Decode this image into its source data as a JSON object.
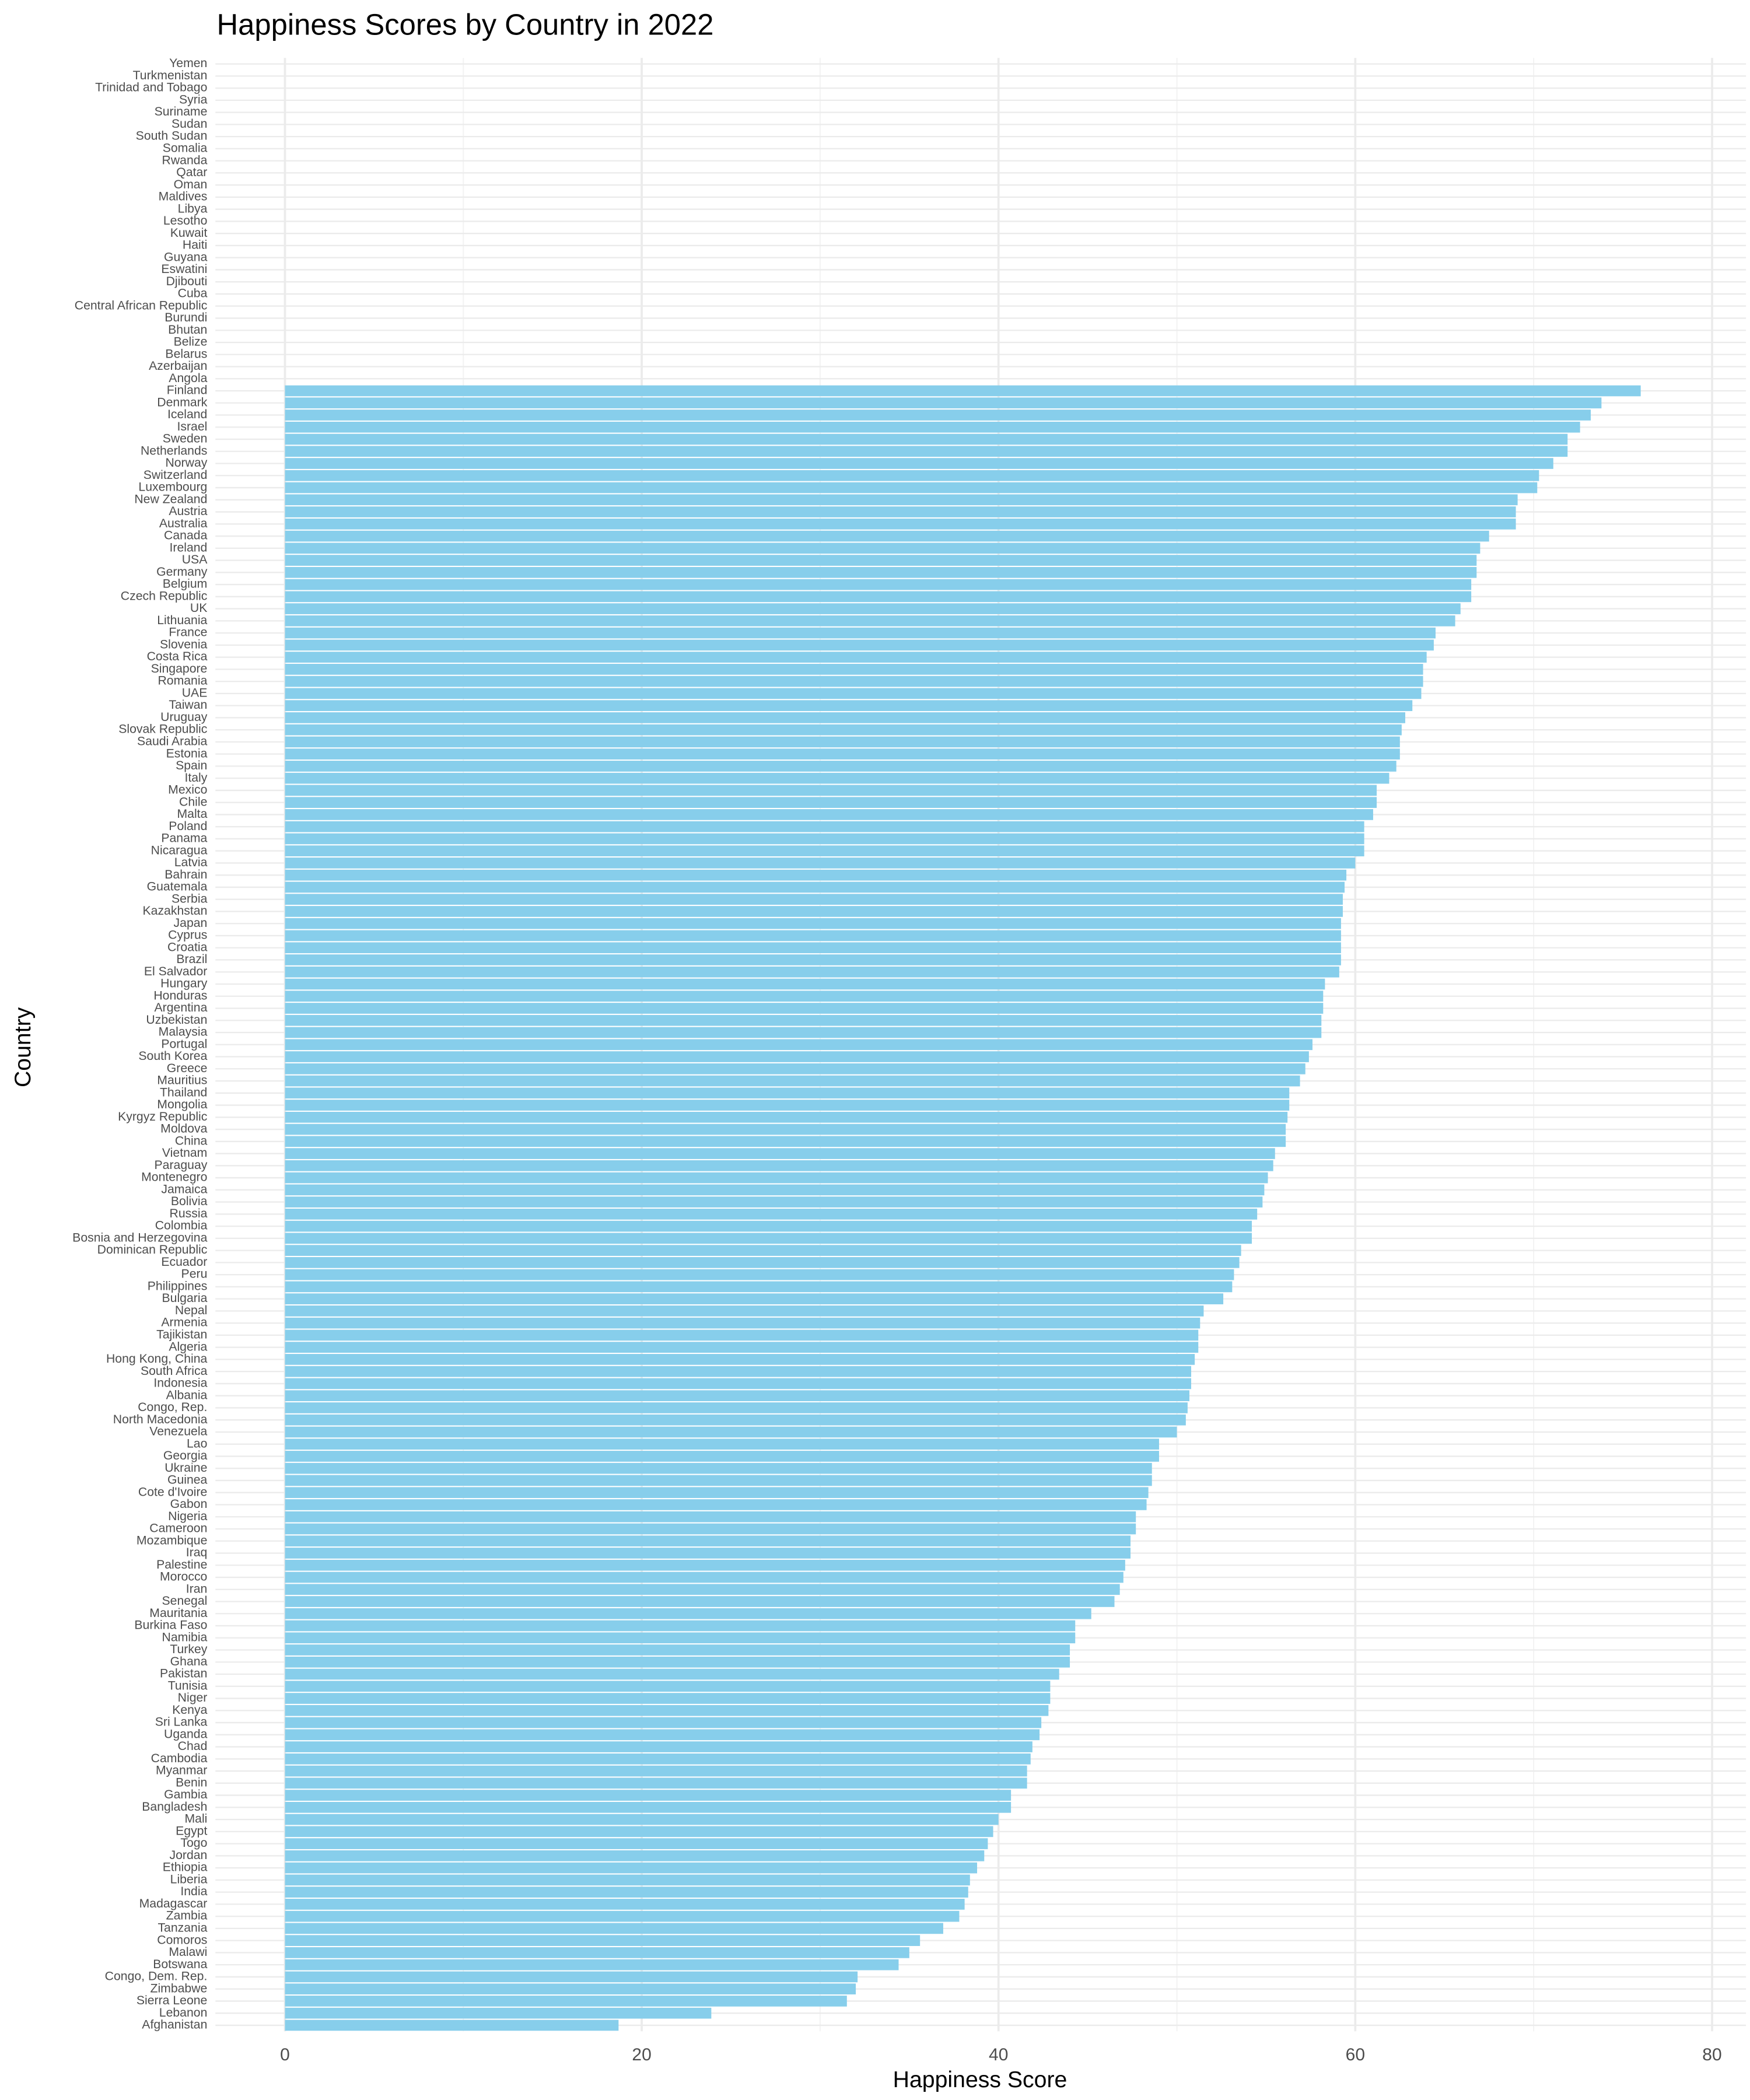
{
  "chart_data": {
    "type": "barh",
    "title": "Happiness Scores by Country in 2022",
    "x_label": "Happiness Score",
    "y_label": "Country",
    "color": "#87ceeb",
    "grid": true,
    "xlim": [
      -3.9,
      81.9
    ],
    "xticks": [
      0,
      20,
      40,
      60,
      80
    ],
    "x_minor_ticks": [
      10,
      30,
      50,
      70
    ],
    "categories": [
      "Yemen",
      "Turkmenistan",
      "Trinidad and Tobago",
      "Syria",
      "Suriname",
      "Sudan",
      "South Sudan",
      "Somalia",
      "Rwanda",
      "Qatar",
      "Oman",
      "Maldives",
      "Libya",
      "Lesotho",
      "Kuwait",
      "Haiti",
      "Guyana",
      "Eswatini",
      "Djibouti",
      "Cuba",
      "Central African Republic",
      "Burundi",
      "Bhutan",
      "Belize",
      "Belarus",
      "Azerbaijan",
      "Angola",
      "Finland",
      "Denmark",
      "Iceland",
      "Israel",
      "Sweden",
      "Netherlands",
      "Norway",
      "Switzerland",
      "Luxembourg",
      "New Zealand",
      "Austria",
      "Australia",
      "Canada",
      "Ireland",
      "USA",
      "Germany",
      "Belgium",
      "Czech Republic",
      "UK",
      "Lithuania",
      "France",
      "Slovenia",
      "Costa Rica",
      "Singapore",
      "Romania",
      "UAE",
      "Taiwan",
      "Uruguay",
      "Slovak Republic",
      "Saudi Arabia",
      "Estonia",
      "Spain",
      "Italy",
      "Mexico",
      "Chile",
      "Malta",
      "Poland",
      "Panama",
      "Nicaragua",
      "Latvia",
      "Bahrain",
      "Guatemala",
      "Serbia",
      "Kazakhstan",
      "Japan",
      "Cyprus",
      "Croatia",
      "Brazil",
      "El Salvador",
      "Hungary",
      "Honduras",
      "Argentina",
      "Uzbekistan",
      "Malaysia",
      "Portugal",
      "South Korea",
      "Greece",
      "Mauritius",
      "Thailand",
      "Mongolia",
      "Kyrgyz Republic",
      "Moldova",
      "China",
      "Vietnam",
      "Paraguay",
      "Montenegro",
      "Jamaica",
      "Bolivia",
      "Russia",
      "Colombia",
      "Bosnia and Herzegovina",
      "Dominican Republic",
      "Ecuador",
      "Peru",
      "Philippines",
      "Bulgaria",
      "Nepal",
      "Armenia",
      "Tajikistan",
      "Algeria",
      "Hong Kong, China",
      "South Africa",
      "Indonesia",
      "Albania",
      "Congo, Rep.",
      "North Macedonia",
      "Venezuela",
      "Lao",
      "Georgia",
      "Ukraine",
      "Guinea",
      "Cote d'Ivoire",
      "Gabon",
      "Nigeria",
      "Cameroon",
      "Mozambique",
      "Iraq",
      "Palestine",
      "Morocco",
      "Iran",
      "Senegal",
      "Mauritania",
      "Burkina Faso",
      "Namibia",
      "Turkey",
      "Ghana",
      "Pakistan",
      "Tunisia",
      "Niger",
      "Kenya",
      "Sri Lanka",
      "Uganda",
      "Chad",
      "Cambodia",
      "Myanmar",
      "Benin",
      "Gambia",
      "Bangladesh",
      "Mali",
      "Egypt",
      "Togo",
      "Jordan",
      "Ethiopia",
      "Liberia",
      "India",
      "Madagascar",
      "Zambia",
      "Tanzania",
      "Comoros",
      "Malawi",
      "Botswana",
      "Congo, Dem. Rep.",
      "Zimbabwe",
      "Sierra Leone",
      "Lebanon",
      "Afghanistan"
    ],
    "values": [
      null,
      null,
      null,
      null,
      null,
      null,
      null,
      null,
      null,
      null,
      null,
      null,
      null,
      null,
      null,
      null,
      null,
      null,
      null,
      null,
      null,
      null,
      null,
      null,
      null,
      null,
      null,
      76.0,
      73.8,
      73.2,
      72.6,
      71.9,
      71.9,
      71.1,
      70.3,
      70.2,
      69.1,
      69.0,
      69.0,
      67.5,
      67.0,
      66.8,
      66.8,
      66.5,
      66.5,
      65.9,
      65.6,
      64.5,
      64.4,
      64.0,
      63.8,
      63.8,
      63.7,
      63.2,
      62.8,
      62.6,
      62.5,
      62.5,
      62.3,
      61.9,
      61.2,
      61.2,
      61.0,
      60.5,
      60.5,
      60.5,
      60.0,
      59.5,
      59.4,
      59.3,
      59.3,
      59.2,
      59.2,
      59.2,
      59.2,
      59.1,
      58.3,
      58.2,
      58.2,
      58.1,
      58.1,
      57.6,
      57.4,
      57.2,
      56.9,
      56.3,
      56.3,
      56.2,
      56.1,
      56.1,
      55.5,
      55.4,
      55.1,
      54.9,
      54.8,
      54.5,
      54.2,
      54.2,
      53.6,
      53.5,
      53.2,
      53.1,
      52.6,
      51.5,
      51.3,
      51.2,
      51.2,
      51.0,
      50.8,
      50.8,
      50.7,
      50.6,
      50.5,
      50.0,
      49.0,
      49.0,
      48.6,
      48.6,
      48.4,
      48.3,
      47.7,
      47.7,
      47.4,
      47.4,
      47.1,
      47.0,
      46.8,
      46.5,
      45.2,
      44.3,
      44.3,
      44.0,
      44.0,
      43.4,
      42.9,
      42.9,
      42.8,
      42.4,
      42.3,
      41.9,
      41.8,
      41.6,
      41.6,
      40.7,
      40.7,
      40.0,
      39.7,
      39.4,
      39.2,
      38.8,
      38.4,
      38.3,
      38.1,
      37.8,
      36.9,
      35.6,
      35.0,
      34.4,
      32.1,
      32.0,
      31.5,
      23.9,
      18.7
    ]
  }
}
